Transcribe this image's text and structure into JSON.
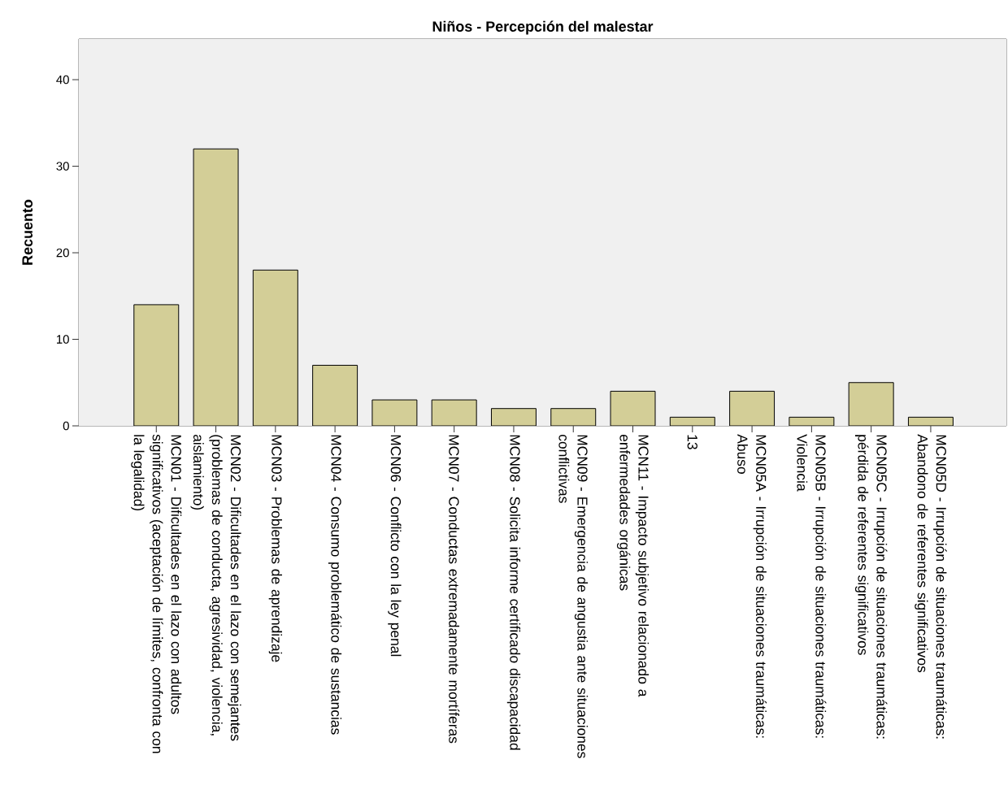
{
  "chart_data": {
    "type": "bar",
    "title": "Niños - Percepción del malestar",
    "ylabel": "Recuento",
    "categories": [
      "MCN01 - Dificultades en el lazo con adultos significativos (aceptación de límites, confronta con la legalidad)",
      "MCN02 - Dificultades en el lazo con semejantes (problemas de conducta, agresividad, violencia, aislamiento)",
      "MCN03 - Problemas de aprendizaje",
      "MCN04 - Consumo problemático de sustancias",
      "MCN06 - Conflicto con la ley penal",
      "MCN07 - Conductas extremadamente mortíferas",
      "MCN08 - Solicita informe certificado discapacidad",
      "MCN09 - Emergencia de angustia ante situaciones conflictivas",
      "MCN11 - Impacto subjetivo relacionado a enfermedades orgánicas",
      "13",
      "MCN05A - Irrupción de situaciones traumáticas: Abuso",
      "MCN05B - Irrupción de situaciones traumáticas: Violencia",
      "MCN05C - Irrupción de situaciones traumáticas: pérdida de referentes significativos",
      "MCN05D - Irrupción de situaciones traumáticas: Abandono de referentes significativos"
    ],
    "values": [
      14,
      32,
      18,
      7,
      3,
      3,
      2,
      2,
      4,
      1,
      4,
      1,
      5,
      1
    ],
    "color": "#d3ce97",
    "ylim": [
      0,
      44.7
    ],
    "yticks": [
      0,
      10,
      20,
      30,
      40
    ],
    "grid": false
  }
}
